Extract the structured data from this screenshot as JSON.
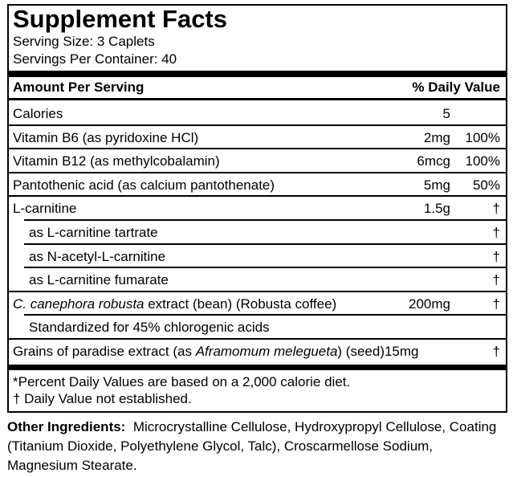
{
  "header": {
    "title": "Supplement Facts",
    "serving_size": "Serving Size: 3 Caplets",
    "servings_per_container": "Servings Per Container: 40"
  },
  "table": {
    "columns": [
      "Amount Per Serving",
      "% Daily Value"
    ],
    "rows": [
      {
        "name": [
          {
            "text": "Calories"
          }
        ],
        "amount": "5"
      },
      {
        "name": [
          {
            "text": "Vitamin B6 (as pyridoxine HCl)"
          }
        ],
        "amount": "2mg",
        "dv": "100%"
      },
      {
        "name": [
          {
            "text": "Vitamin B12 (as methylcobalamin)"
          }
        ],
        "amount": "6mcg",
        "dv": "100%"
      },
      {
        "name": [
          {
            "text": "Pantothenic acid (as calcium pantothenate)"
          }
        ],
        "amount": "5mg",
        "dv": "50%"
      },
      {
        "name": [
          {
            "text": "L-carnitine"
          }
        ],
        "amount": "1.5g",
        "dv": "†"
      },
      {
        "name": [
          {
            "text": "as L-carnitine tartrate"
          }
        ],
        "dv": "†",
        "indent": true
      },
      {
        "name": [
          {
            "text": "as N-acetyl-L-carnitine"
          }
        ],
        "dv": "†",
        "indent": true
      },
      {
        "name": [
          {
            "text": "as L-carnitine fumarate"
          }
        ],
        "dv": "†",
        "indent": true
      },
      {
        "name": [
          {
            "text": "C. canephora robusta",
            "italic": true
          },
          {
            "text": " extract (bean) (Robusta coffee)"
          }
        ],
        "amount": "200mg",
        "dv": "†"
      },
      {
        "name": [
          {
            "text": "Standardized for 45% chlorogenic acids"
          }
        ],
        "indent": true
      },
      {
        "name": [
          {
            "text": "Grains of paradise extract (as "
          },
          {
            "text": "Aframomum melegueta",
            "italic": true
          },
          {
            "text": ") (seed)15mg"
          }
        ],
        "dv": "†"
      }
    ]
  },
  "footnotes": [
    "*Percent Daily Values are based on a 2,000 calorie diet.",
    "† Daily Value not established."
  ],
  "other_ingredients": {
    "label": "Other Ingredients:",
    "text": "Microcrystalline Cellulose, Hydroxypropyl Cellulose, Coating (Titanium Dioxide, Polyethylene Glycol, Talc), Croscarmellose Sodium, Magnesium Stearate."
  }
}
